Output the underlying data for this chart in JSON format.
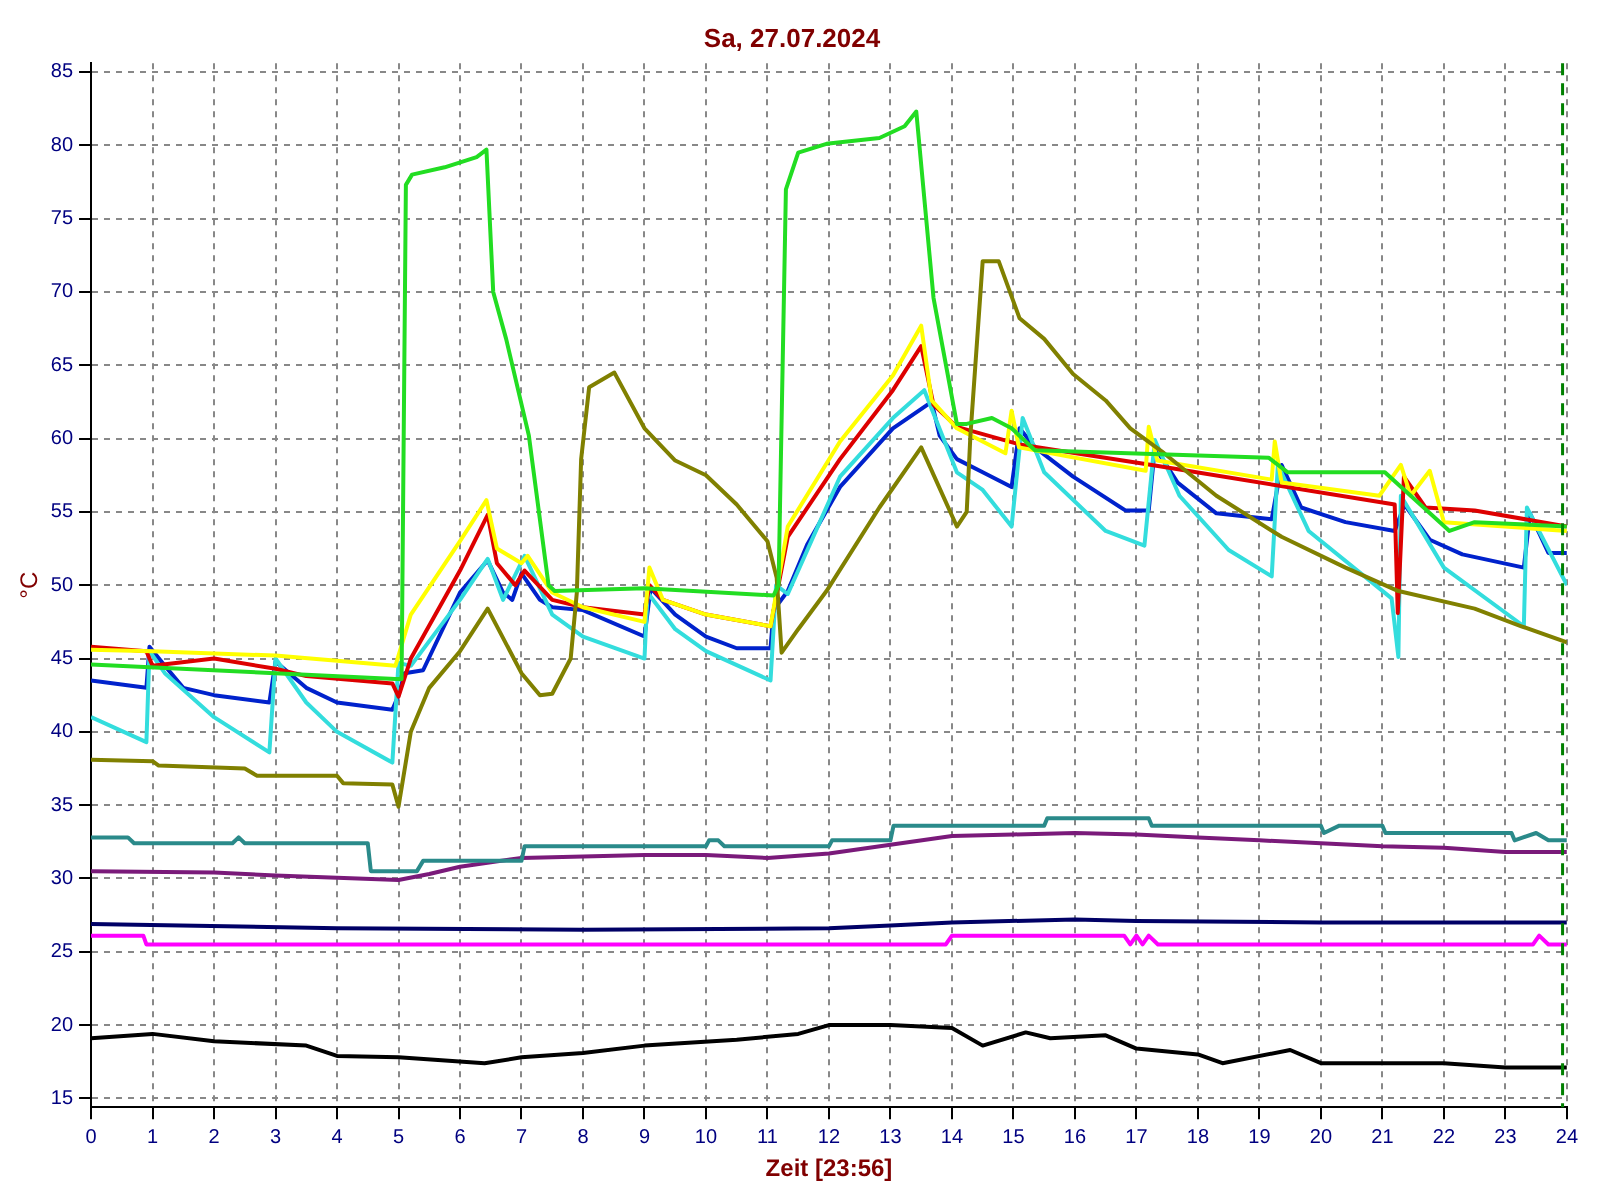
{
  "chart_data": {
    "type": "line",
    "title": "Sa, 27.07.2024",
    "xlabel": "Zeit [23:56]",
    "ylabel": "°C",
    "xlim": [
      0,
      24
    ],
    "xticks": [
      0,
      1,
      2,
      3,
      4,
      5,
      6,
      7,
      8,
      9,
      10,
      11,
      12,
      13,
      14,
      15,
      16,
      17,
      18,
      19,
      20,
      21,
      22,
      23,
      24
    ],
    "ylim": [
      14.4,
      85.6
    ],
    "yticks": [
      15,
      20,
      25,
      30,
      35,
      40,
      45,
      50,
      55,
      60,
      65,
      70,
      75,
      80,
      85
    ],
    "grid": true,
    "legend": false,
    "marker": "none",
    "line_style": "solid",
    "ref_lines": [
      {
        "axis": "x",
        "value": 23.93,
        "color": "#008000",
        "line_style": "dashed"
      }
    ],
    "series": [
      {
        "color": "#22dd22",
        "x": [
          0,
          4.95,
          5.05,
          5.12,
          5.22,
          5.75,
          6.27,
          6.43,
          6.54,
          6.75,
          7.12,
          7.44,
          7.54,
          9,
          11.1,
          11.18,
          11.3,
          11.5,
          11.96,
          12.82,
          13.23,
          13.42,
          13.7,
          14.08,
          14.24,
          14.65,
          14.97,
          15.35,
          19.15,
          19.46,
          21.04,
          21.46,
          22.09,
          22.5,
          24
        ],
        "values": [
          44.6,
          43.6,
          43.6,
          77.3,
          78,
          78.5,
          79.2,
          79.7,
          70,
          66.8,
          60.2,
          50,
          49.6,
          49.8,
          49.3,
          50,
          77,
          79.5,
          80.1,
          80.5,
          81.3,
          82.3,
          69.6,
          61,
          61,
          61.4,
          60.7,
          59.2,
          58.7,
          57.7,
          57.7,
          56.1,
          53.7,
          54.3,
          54
        ]
      },
      {
        "color": "#808000",
        "x": [
          0,
          1,
          1.1,
          2.5,
          2.7,
          4,
          4.1,
          4.9,
          5.0,
          5.2,
          5.5,
          6,
          6.45,
          7,
          7.3,
          7.5,
          7.8,
          7.9,
          7.97,
          8.1,
          8.51,
          9,
          9.5,
          10,
          10.5,
          11,
          11.15,
          11.23,
          11.5,
          11.96,
          12.82,
          13.5,
          14.08,
          14.24,
          14.3,
          14.5,
          14.76,
          15.1,
          15.5,
          15.97,
          16.5,
          16.9,
          17.45,
          18.3,
          19.36,
          20.4,
          21.26,
          22.5,
          23.26,
          24
        ],
        "values": [
          38.1,
          38,
          37.7,
          37.5,
          37,
          37,
          36.5,
          36.4,
          34.9,
          40,
          43,
          45.5,
          48.4,
          44,
          42.5,
          42.6,
          45,
          49.5,
          58.6,
          63.5,
          64.5,
          60.7,
          58.5,
          57.5,
          55.5,
          53,
          50.5,
          45.4,
          47,
          49.6,
          55.3,
          59.4,
          54,
          55,
          60.2,
          72.1,
          72.1,
          68.2,
          66.8,
          64.4,
          62.6,
          60.7,
          59,
          56.1,
          53.3,
          51.2,
          49.6,
          48.4,
          47.2,
          46.1
        ]
      },
      {
        "color": "#ffff00",
        "x": [
          0,
          1,
          3,
          4.95,
          5.2,
          6,
          6.43,
          6.6,
          7.0,
          7.1,
          7.5,
          8,
          9,
          9.08,
          9.3,
          10,
          11.05,
          11.33,
          12.18,
          13.04,
          13.5,
          13.67,
          14.08,
          14.87,
          14.97,
          15.09,
          17.15,
          17.2,
          17.34,
          19.2,
          19.25,
          19.36,
          20.95,
          21.3,
          21.46,
          21.77,
          22.0,
          24
        ],
        "values": [
          45.6,
          45.5,
          45.2,
          44.5,
          48,
          53,
          55.8,
          52.5,
          51.5,
          52,
          49.5,
          48.5,
          47.5,
          51.2,
          49,
          48,
          47.2,
          54,
          59.8,
          64.3,
          67.7,
          62.6,
          60.7,
          59,
          61.9,
          59.4,
          57.8,
          60.8,
          58.5,
          57.2,
          59.8,
          57,
          56.1,
          58.2,
          56.1,
          57.8,
          54.3,
          53.7
        ]
      },
      {
        "color": "#dd0000",
        "x": [
          0,
          0.9,
          1.0,
          2,
          3,
          3.5,
          4.9,
          5.0,
          5.2,
          6,
          6.45,
          6.6,
          6.9,
          7.05,
          7.5,
          8,
          9,
          9.08,
          9.3,
          10,
          11.05,
          11.33,
          12.18,
          13.04,
          13.5,
          13.7,
          14.08,
          15.1,
          17.25,
          21.2,
          21.25,
          21.35,
          21.7,
          22.5,
          24
        ],
        "values": [
          45.8,
          45.5,
          44.5,
          45,
          44.3,
          43.8,
          43.3,
          42.4,
          45,
          51,
          54.8,
          51.5,
          50,
          51,
          49,
          48.5,
          48,
          50,
          49,
          48,
          47.2,
          53.3,
          58.6,
          63.3,
          66.3,
          62.3,
          60.8,
          59.6,
          58.2,
          55.5,
          48.1,
          57.4,
          55.3,
          55.1,
          54
        ]
      },
      {
        "color": "#33dddd",
        "x": [
          0,
          0.9,
          0.95,
          1.2,
          2,
          2.9,
          3.0,
          3.5,
          4,
          4.9,
          5.0,
          5.2,
          6,
          6.45,
          6.7,
          7.05,
          7.5,
          8,
          9,
          9.05,
          9.5,
          10,
          11.05,
          11.14,
          11.33,
          12.18,
          13.04,
          13.55,
          14.08,
          14.5,
          14.97,
          15.15,
          15.5,
          16.5,
          17.13,
          17.3,
          17.7,
          18.5,
          19.2,
          19.3,
          19.8,
          21.15,
          21.26,
          21.3,
          22,
          23.3,
          23.35,
          24
        ],
        "values": [
          41,
          39.3,
          45.5,
          44,
          41,
          38.6,
          45,
          42,
          40,
          37.9,
          44.7,
          44.5,
          49,
          51.8,
          49,
          52,
          48,
          46.5,
          45,
          49.5,
          47,
          45.5,
          43.5,
          50,
          49.4,
          57.4,
          61.4,
          63.3,
          57.7,
          56.5,
          54,
          61.4,
          57.7,
          53.7,
          52.7,
          59.9,
          56.1,
          52.4,
          50.6,
          58.2,
          53.7,
          49.1,
          45.1,
          56.1,
          51.2,
          47.2,
          55.3,
          50
        ]
      },
      {
        "color": "#0022cc",
        "x": [
          0,
          0.9,
          0.95,
          1.2,
          1.5,
          2,
          2.9,
          3.0,
          3.5,
          4,
          4.9,
          5.0,
          5.1,
          5.4,
          6,
          6.45,
          6.7,
          6.85,
          7.0,
          7.3,
          7.5,
          8,
          9,
          9.1,
          9.5,
          10,
          10.5,
          11.05,
          11.1,
          11.33,
          11.65,
          12.18,
          13.04,
          13.67,
          13.8,
          14.08,
          14.5,
          14.97,
          15.1,
          15.35,
          15.97,
          16.82,
          17.2,
          17.3,
          17.67,
          18.3,
          19.2,
          19.36,
          19.68,
          20.4,
          21.2,
          21.36,
          21.77,
          22.3,
          23.3,
          23.4,
          23.7,
          24
        ],
        "values": [
          43.5,
          43,
          45.8,
          44.5,
          43,
          42.5,
          42,
          44.8,
          43,
          42,
          41.5,
          42.5,
          44,
          44.2,
          49.5,
          51.7,
          49.5,
          49,
          50.8,
          49,
          48.5,
          48.3,
          46.5,
          49.8,
          48,
          46.5,
          45.7,
          45.7,
          48.3,
          49.6,
          52.8,
          56.7,
          60.7,
          62.5,
          60.2,
          58.6,
          57.7,
          56.7,
          60.7,
          59.4,
          57.4,
          55.1,
          55.1,
          59.4,
          57,
          54.9,
          54.5,
          58.2,
          55.3,
          54.3,
          53.7,
          55.5,
          53.1,
          52.1,
          51.2,
          54.9,
          52.2,
          52.2
        ]
      },
      {
        "color": "#2a8a8a",
        "x": [
          0,
          0.6,
          0.7,
          0.8,
          2.3,
          2.4,
          2.5,
          4.5,
          4.55,
          5.3,
          5.4,
          7,
          7.05,
          10,
          10.05,
          10.2,
          10.3,
          12,
          12.05,
          13,
          13.05,
          15.5,
          15.55,
          17.2,
          17.25,
          17.3,
          20,
          20.05,
          20.3,
          21,
          21.05,
          21.1,
          23.1,
          23.15,
          23.5,
          23.7,
          24
        ],
        "values": [
          32.8,
          32.8,
          32.4,
          32.4,
          32.4,
          32.8,
          32.4,
          32.4,
          30.5,
          30.5,
          31.2,
          31.2,
          32.2,
          32.2,
          32.6,
          32.6,
          32.2,
          32.2,
          32.6,
          32.6,
          33.6,
          33.6,
          34.1,
          34.1,
          33.6,
          33.6,
          33.6,
          33.1,
          33.6,
          33.6,
          33.1,
          33.1,
          33.1,
          32.6,
          33.1,
          32.6,
          32.6
        ]
      },
      {
        "color": "#7a1a7a",
        "x": [
          0,
          2,
          3,
          5,
          5.5,
          6,
          7,
          8,
          9,
          10,
          11,
          12,
          13,
          14,
          15,
          16,
          17,
          18,
          19,
          20,
          21,
          22,
          23,
          24
        ],
        "values": [
          30.5,
          30.4,
          30.2,
          29.9,
          30.3,
          30.8,
          31.4,
          31.5,
          31.6,
          31.6,
          31.4,
          31.7,
          32.3,
          32.9,
          33,
          33.1,
          33,
          32.8,
          32.6,
          32.4,
          32.2,
          32.1,
          31.8,
          31.8
        ]
      },
      {
        "color": "#000066",
        "x": [
          0,
          4,
          8,
          12,
          13,
          14,
          16,
          17,
          20,
          24
        ],
        "values": [
          26.9,
          26.6,
          26.5,
          26.6,
          26.8,
          27,
          27.2,
          27.1,
          27,
          27
        ]
      },
      {
        "color": "#ff00ff",
        "x": [
          0,
          0.85,
          0.9,
          13.9,
          14,
          16.8,
          16.9,
          17.0,
          17.1,
          17.2,
          17.35,
          23.45,
          23.55,
          23.7,
          24
        ],
        "values": [
          26.1,
          26.1,
          25.5,
          25.5,
          26.1,
          26.1,
          25.5,
          26.1,
          25.5,
          26.1,
          25.5,
          25.5,
          26.1,
          25.5,
          25.5
        ]
      },
      {
        "color": "#000000",
        "x": [
          0,
          1,
          2,
          3.5,
          4,
          5,
          6.4,
          7,
          8,
          9,
          10.5,
          11.5,
          12,
          13,
          14,
          14.5,
          15.2,
          15.6,
          16.5,
          17,
          18,
          18.4,
          19.5,
          20,
          22,
          23,
          24
        ],
        "values": [
          19.1,
          19.4,
          18.9,
          18.6,
          17.9,
          17.8,
          17.4,
          17.8,
          18.1,
          18.6,
          19,
          19.4,
          20,
          20,
          19.8,
          18.6,
          19.5,
          19.1,
          19.3,
          18.4,
          18,
          17.4,
          18.3,
          17.4,
          17.4,
          17.1,
          17.1
        ]
      }
    ]
  }
}
